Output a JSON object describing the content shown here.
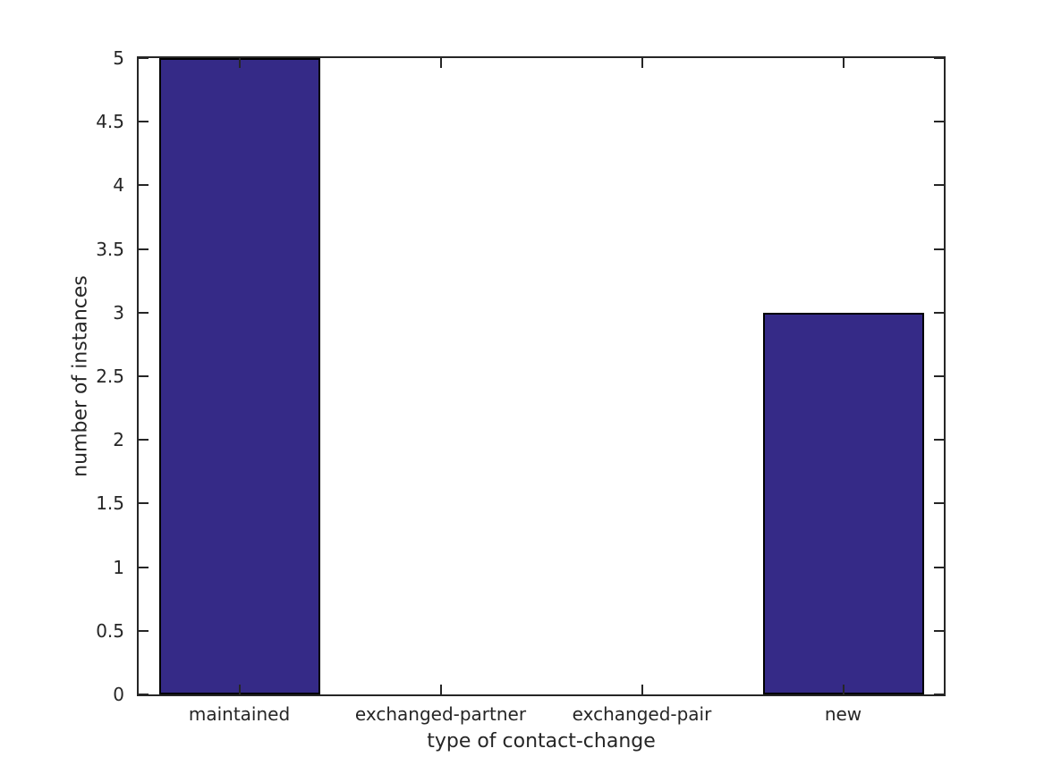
{
  "chart_data": {
    "type": "bar",
    "categories": [
      "maintained",
      "exchanged-partner",
      "exchanged-pair",
      "new"
    ],
    "values": [
      5,
      0,
      0,
      3
    ],
    "xlabel": "type of contact-change",
    "ylabel": "number of instances",
    "ylim": [
      0,
      5
    ],
    "yticks": [
      0,
      0.5,
      1,
      1.5,
      2,
      2.5,
      3,
      3.5,
      4,
      4.5,
      5
    ],
    "ytick_labels": [
      "0",
      "0.5",
      "1",
      "1.5",
      "2",
      "2.5",
      "3",
      "3.5",
      "4",
      "4.5",
      "5"
    ],
    "bar_width_fraction": 0.8,
    "grid": false,
    "box": true,
    "tick_direction": "in",
    "colors": {
      "bar_fill": "#352a87",
      "bar_edge": "#000000",
      "axis": "#262626",
      "text": "#262626",
      "background": "#ffffff"
    }
  }
}
